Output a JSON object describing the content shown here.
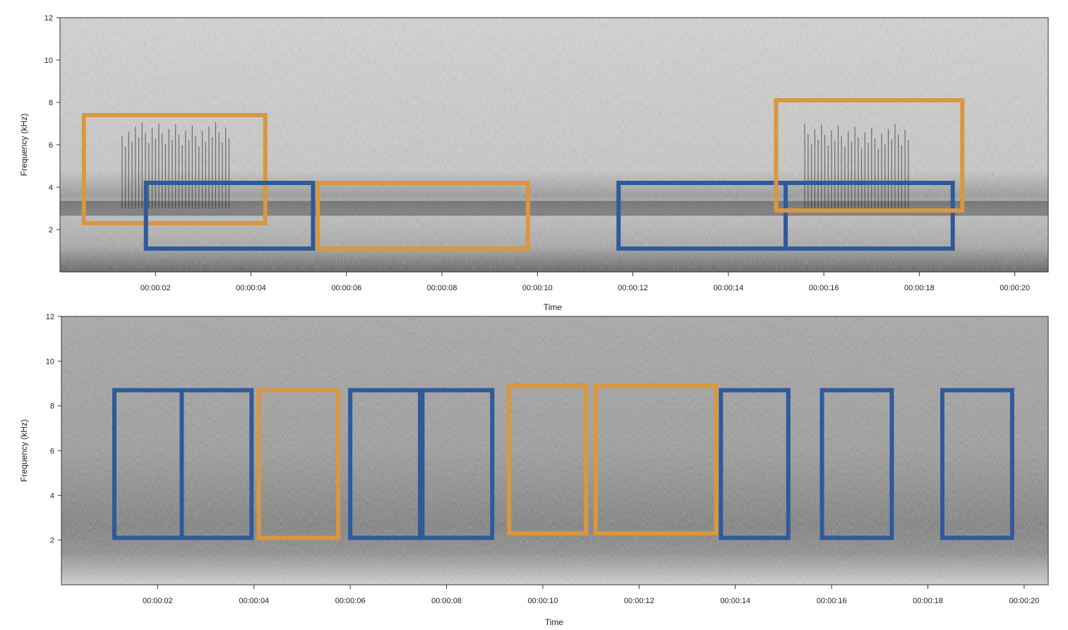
{
  "colors": {
    "blue_box": "#2f5a9a",
    "orange_box": "#d9973f",
    "axis": "#333333"
  },
  "chart_data": [
    {
      "type": "spectrogram",
      "xlabel": "Time",
      "ylabel": "Frequency (kHz)",
      "xlim_seconds": [
        0,
        20.7
      ],
      "ylim_khz": [
        0,
        12
      ],
      "x_ticks": [
        "00:00:02",
        "00:00:04",
        "00:00:06",
        "00:00:08",
        "00:00:10",
        "00:00:12",
        "00:00:14",
        "00:00:16",
        "00:00:18",
        "00:00:20"
      ],
      "x_tick_values": [
        2,
        4,
        6,
        8,
        10,
        12,
        14,
        16,
        18,
        20
      ],
      "y_ticks": [
        "2",
        "4",
        "6",
        "8",
        "10",
        "12"
      ],
      "y_tick_values": [
        2,
        4,
        6,
        8,
        10,
        12
      ],
      "noise_band_khz": 3.0,
      "boxes": [
        {
          "color": "orange",
          "t0": 0.5,
          "t1": 4.3,
          "f0": 2.3,
          "f1": 7.4
        },
        {
          "color": "blue",
          "t0": 1.8,
          "t1": 5.3,
          "f0": 1.1,
          "f1": 4.2
        },
        {
          "color": "orange",
          "t0": 5.4,
          "t1": 9.8,
          "f0": 1.1,
          "f1": 4.2
        },
        {
          "color": "blue",
          "t0": 11.7,
          "t1": 15.2,
          "f0": 1.1,
          "f1": 4.2
        },
        {
          "color": "blue",
          "t0": 15.2,
          "t1": 18.7,
          "f0": 1.1,
          "f1": 4.2
        },
        {
          "color": "orange",
          "t0": 15.0,
          "t1": 18.9,
          "f0": 2.9,
          "f1": 8.1
        }
      ],
      "calls": [
        {
          "t0": 1.3,
          "t1": 3.6,
          "f0": 3.0,
          "f1": 7.1,
          "step": 0.07
        },
        {
          "t0": 15.6,
          "t1": 17.8,
          "f0": 3.0,
          "f1": 7.0,
          "step": 0.07
        }
      ]
    },
    {
      "type": "spectrogram",
      "xlabel": "Time",
      "ylabel": "Frequency (kHz)",
      "xlim_seconds": [
        0,
        20.5
      ],
      "ylim_khz": [
        0,
        12
      ],
      "x_ticks": [
        "00:00:02",
        "00:00:04",
        "00:00:06",
        "00:00:08",
        "00:00:10",
        "00:00:12",
        "00:00:14",
        "00:00:16",
        "00:00:18",
        "00:00:20"
      ],
      "x_tick_values": [
        2,
        4,
        6,
        8,
        10,
        12,
        14,
        16,
        18,
        20
      ],
      "y_ticks": [
        "2",
        "4",
        "6",
        "8",
        "10",
        "12"
      ],
      "y_tick_values": [
        2,
        4,
        6,
        8,
        10,
        12
      ],
      "boxes": [
        {
          "color": "blue",
          "t0": 1.1,
          "t1": 2.5,
          "f0": 2.1,
          "f1": 8.7
        },
        {
          "color": "blue",
          "t0": 2.5,
          "t1": 3.95,
          "f0": 2.1,
          "f1": 8.7
        },
        {
          "color": "orange",
          "t0": 4.1,
          "t1": 5.75,
          "f0": 2.1,
          "f1": 8.7
        },
        {
          "color": "blue",
          "t0": 6.0,
          "t1": 7.45,
          "f0": 2.1,
          "f1": 8.7
        },
        {
          "color": "blue",
          "t0": 7.5,
          "t1": 8.95,
          "f0": 2.1,
          "f1": 8.7
        },
        {
          "color": "orange",
          "t0": 9.3,
          "t1": 10.9,
          "f0": 2.3,
          "f1": 8.9
        },
        {
          "color": "orange",
          "t0": 11.1,
          "t1": 13.6,
          "f0": 2.3,
          "f1": 8.9
        },
        {
          "color": "blue",
          "t0": 13.7,
          "t1": 15.1,
          "f0": 2.1,
          "f1": 8.7
        },
        {
          "color": "blue",
          "t0": 15.8,
          "t1": 17.25,
          "f0": 2.1,
          "f1": 8.7
        },
        {
          "color": "blue",
          "t0": 18.3,
          "t1": 19.75,
          "f0": 2.1,
          "f1": 8.7
        }
      ]
    }
  ]
}
